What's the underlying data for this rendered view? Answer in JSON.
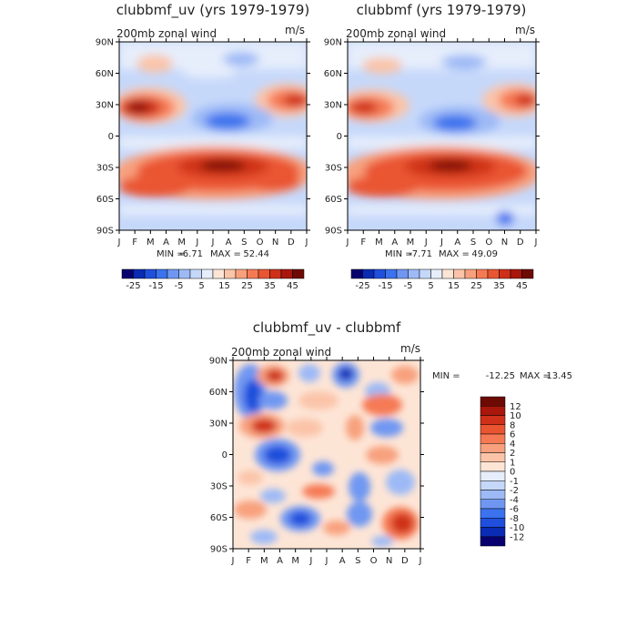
{
  "chart_data": [
    {
      "type": "heatmap",
      "title": "clubbmf_uv (yrs 1979-1979)",
      "subtitle": "200mb zonal wind",
      "units": "m/s",
      "x_ticks": [
        "J",
        "F",
        "M",
        "A",
        "M",
        "J",
        "J",
        "A",
        "S",
        "O",
        "N",
        "D",
        "J"
      ],
      "y_ticks": [
        "90N",
        "60N",
        "30N",
        "0",
        "30S",
        "60S",
        "90S"
      ],
      "min_label": "MIN =",
      "min": "-6.71",
      "max_label": "MAX =",
      "max": "52.44",
      "colorbar": {
        "orientation": "horizontal",
        "levels": [
          -25,
          -20,
          -15,
          -10,
          -5,
          0,
          5,
          10,
          15,
          20,
          25,
          30,
          35,
          40,
          45
        ],
        "labels": [
          "-25",
          "-15",
          "-5",
          "5",
          "15",
          "25",
          "35",
          "45"
        ]
      }
    },
    {
      "type": "heatmap",
      "title": "clubbmf (yrs 1979-1979)",
      "subtitle": "200mb zonal wind",
      "units": "m/s",
      "x_ticks": [
        "J",
        "F",
        "M",
        "A",
        "M",
        "J",
        "J",
        "A",
        "S",
        "O",
        "N",
        "D",
        "J"
      ],
      "y_ticks": [
        "90N",
        "60N",
        "30N",
        "0",
        "30S",
        "60S",
        "90S"
      ],
      "min_label": "MIN =",
      "min": "-7.71",
      "max_label": "MAX =",
      "max": "49.09",
      "colorbar": {
        "orientation": "horizontal",
        "levels": [
          -25,
          -20,
          -15,
          -10,
          -5,
          0,
          5,
          10,
          15,
          20,
          25,
          30,
          35,
          40,
          45
        ],
        "labels": [
          "-25",
          "-15",
          "-5",
          "5",
          "15",
          "25",
          "35",
          "45"
        ]
      }
    },
    {
      "type": "heatmap",
      "title": "clubbmf_uv - clubbmf",
      "subtitle": "200mb zonal wind",
      "units": "m/s",
      "x_ticks": [
        "J",
        "F",
        "M",
        "A",
        "M",
        "J",
        "J",
        "A",
        "S",
        "O",
        "N",
        "D",
        "J"
      ],
      "y_ticks": [
        "90N",
        "60N",
        "30N",
        "0",
        "30S",
        "60S",
        "90S"
      ],
      "min_label": "MIN =",
      "min": "-12.25",
      "max_label": "MAX =",
      "max": "13.45",
      "colorbar": {
        "orientation": "vertical",
        "levels": [
          12,
          10,
          8,
          6,
          4,
          2,
          1,
          0,
          -1,
          -2,
          -4,
          -6,
          -8,
          -10,
          -12
        ],
        "labels": [
          "12",
          "10",
          "8",
          "6",
          "4",
          "2",
          "1",
          "0",
          "-1",
          "-2",
          "-4",
          "-6",
          "-8",
          "-10",
          "-12"
        ]
      }
    }
  ],
  "palette": {
    "blue_to_red": [
      "#08006e",
      "#0a2bb4",
      "#1f4fdc",
      "#3b72ee",
      "#6f97f2",
      "#9dbaf6",
      "#c6d8fa",
      "#e6eefc",
      "#fde5d6",
      "#fbc4a9",
      "#f8a07d",
      "#f57a54",
      "#ea5531",
      "#cf3019",
      "#a9170c",
      "#6e0a04"
    ]
  }
}
